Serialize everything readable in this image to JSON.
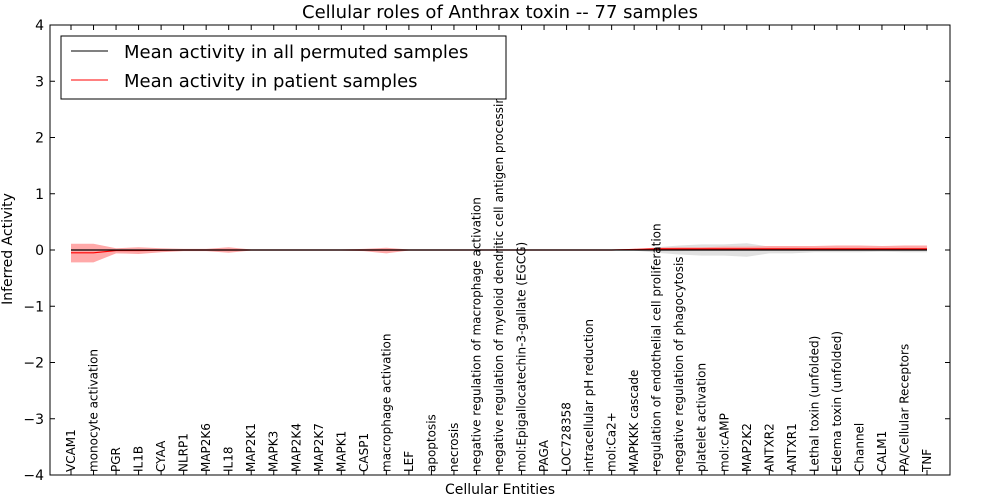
{
  "chart_data": {
    "type": "line",
    "title": "Cellular roles of Anthrax toxin -- 77 samples",
    "xlabel": "Cellular Entities",
    "ylabel": "Inferred Activity",
    "ylim": [
      -4,
      4
    ],
    "yticks": [
      -4,
      -3,
      -2,
      -1,
      0,
      1,
      2,
      3,
      4
    ],
    "ytick_labels": [
      "−4",
      "−3",
      "−2",
      "−1",
      "0",
      "1",
      "2",
      "3",
      "4"
    ],
    "legend_position": "top-left",
    "grid": false,
    "categories": [
      "VCAM1",
      "monocyte activation",
      "PGR",
      "IL1B",
      "CYAA",
      "NLRP1",
      "MAP2K6",
      "IL18",
      "MAP2K1",
      "MAPK3",
      "MAP2K4",
      "MAP2K7",
      "MAPK1",
      "CASP1",
      "macrophage activation",
      "LEF",
      "apoptosis",
      "necrosis",
      "negative regulation of macrophage activation",
      "negative regulation of myeloid dendritic cell antigen processing and",
      "mol:Epigallocatechin-3-gallate (EGCG)",
      "PAGA",
      "LOC728358",
      "intracellular pH reduction",
      "mol:Ca2+",
      "MAPKKK cascade",
      "regulation of endothelial cell proliferation",
      "negative regulation of phagocytosis",
      "platelet activation",
      "mol:cAMP",
      "MAP2K2",
      "ANTXR2",
      "ANTXR1",
      "Lethal toxin (unfolded)",
      "Edema toxin (unfolded)",
      "Channel",
      "CALM1",
      "PA/Cellular Receptors",
      "TNF"
    ],
    "series": [
      {
        "name": "Mean activity in all permuted samples",
        "color": "#000000",
        "band_color": "#d3d3d3",
        "values": [
          0,
          0,
          0,
          0,
          0,
          0,
          0,
          0,
          0,
          0,
          0,
          0,
          0,
          0,
          0,
          0,
          0,
          0,
          0,
          0,
          0,
          0,
          0,
          0,
          0,
          0,
          0,
          0,
          0,
          0,
          0,
          0,
          0,
          0,
          0,
          0,
          0,
          0,
          0
        ],
        "lower": [
          -0.01,
          -0.01,
          -0.01,
          -0.01,
          -0.01,
          -0.01,
          -0.01,
          -0.01,
          -0.01,
          -0.01,
          -0.01,
          -0.01,
          -0.01,
          -0.01,
          -0.01,
          -0.01,
          -0.01,
          -0.01,
          -0.01,
          -0.01,
          -0.01,
          -0.01,
          -0.01,
          -0.01,
          -0.01,
          -0.01,
          -0.05,
          -0.08,
          -0.1,
          -0.1,
          -0.12,
          -0.06,
          -0.06,
          -0.04,
          -0.04,
          -0.04,
          -0.03,
          -0.04,
          -0.04
        ],
        "upper": [
          0.01,
          0.01,
          0.01,
          0.01,
          0.01,
          0.01,
          0.01,
          0.01,
          0.01,
          0.01,
          0.01,
          0.01,
          0.01,
          0.01,
          0.01,
          0.01,
          0.01,
          0.01,
          0.01,
          0.01,
          0.01,
          0.01,
          0.01,
          0.01,
          0.01,
          0.01,
          0.05,
          0.08,
          0.1,
          0.1,
          0.12,
          0.06,
          0.06,
          0.04,
          0.04,
          0.04,
          0.03,
          0.04,
          0.04
        ]
      },
      {
        "name": "Mean activity in patient samples",
        "color": "#ff0000",
        "band_color": "#ff9a9a",
        "values": [
          -0.05,
          -0.05,
          -0.01,
          -0.01,
          -0.005,
          0,
          0,
          0,
          0,
          0,
          0,
          0,
          0,
          0,
          0,
          0,
          0,
          0,
          0,
          0,
          0,
          0,
          0,
          0,
          0,
          0.01,
          0.02,
          0.02,
          0.02,
          0.02,
          0.02,
          0.02,
          0.02,
          0.02,
          0.02,
          0.02,
          0.02,
          0.02,
          0.02
        ],
        "lower": [
          -0.22,
          -0.22,
          -0.06,
          -0.07,
          -0.04,
          -0.02,
          -0.02,
          -0.05,
          -0.01,
          -0.01,
          -0.01,
          -0.01,
          -0.01,
          -0.02,
          -0.06,
          -0.01,
          -0.01,
          -0.01,
          -0.01,
          -0.01,
          -0.01,
          -0.01,
          -0.01,
          -0.01,
          -0.01,
          -0.01,
          -0.01,
          -0.01,
          -0.01,
          -0.01,
          -0.01,
          -0.01,
          -0.01,
          -0.01,
          -0.01,
          -0.01,
          -0.01,
          -0.01,
          -0.01
        ],
        "upper": [
          0.11,
          0.11,
          0.03,
          0.05,
          0.03,
          0.02,
          0.02,
          0.05,
          0.01,
          0.01,
          0.01,
          0.01,
          0.01,
          0.02,
          0.04,
          0.01,
          0.01,
          0.01,
          0.01,
          0.01,
          0.01,
          0.01,
          0.01,
          0.01,
          0.01,
          0.02,
          0.04,
          0.05,
          0.05,
          0.06,
          0.06,
          0.07,
          0.07,
          0.07,
          0.08,
          0.08,
          0.07,
          0.08,
          0.08
        ]
      }
    ]
  }
}
